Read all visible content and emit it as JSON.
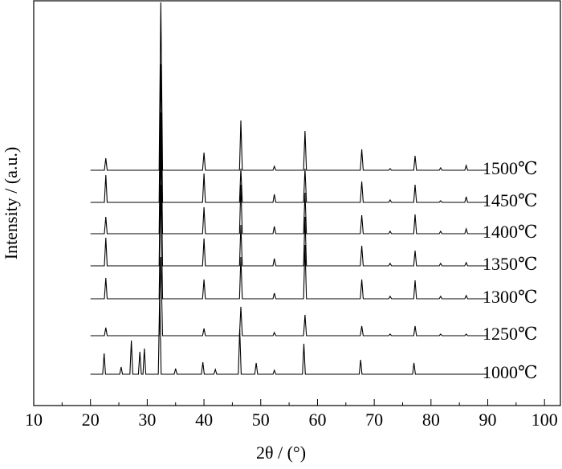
{
  "chart_data": {
    "type": "line",
    "xlabel": "2θ / (°)",
    "ylabel": "Intensity / (a.u.)",
    "xlim": [
      10,
      102.8
    ],
    "xticks": [
      10,
      20,
      30,
      40,
      50,
      60,
      70,
      80,
      90,
      100
    ],
    "xminorticks": [
      15,
      25,
      35,
      45,
      55,
      65,
      75,
      85,
      95
    ],
    "ylim": [
      0,
      505
    ],
    "color": "#000000",
    "series": [
      {
        "name": "1500℃",
        "x": [
          20,
          22.45,
          22.7,
          22.95,
          32.1,
          32.4,
          32.7,
          39.75,
          40,
          40.25,
          46.25,
          46.5,
          46.75,
          52.15,
          52.4,
          52.65,
          57.55,
          57.8,
          58.05,
          67.55,
          67.8,
          68.05,
          72.55,
          72.8,
          73.05,
          76.95,
          77.2,
          77.45,
          81.45,
          81.7,
          81.95,
          85.95,
          86.2,
          86.45,
          90
        ],
        "values": [
          293,
          293,
          308,
          293,
          293,
          502,
          293,
          293,
          315,
          293,
          293,
          355,
          293,
          293,
          298,
          293,
          293,
          342,
          293,
          293,
          319,
          293,
          293,
          295,
          293,
          293,
          311,
          293,
          293,
          296,
          293,
          293,
          299,
          293,
          293
        ]
      },
      {
        "name": "1450℃",
        "x": [
          20,
          22.45,
          22.7,
          22.95,
          32.1,
          32.4,
          32.7,
          39.75,
          40,
          40.25,
          46.25,
          46.5,
          46.75,
          52.15,
          52.4,
          52.65,
          57.55,
          57.8,
          58.05,
          67.55,
          67.8,
          68.05,
          72.55,
          72.8,
          73.05,
          76.95,
          77.2,
          77.45,
          81.45,
          81.7,
          81.95,
          85.95,
          86.2,
          86.45,
          90
        ],
        "values": [
          253,
          253,
          287,
          253,
          253,
          425,
          253,
          253,
          289,
          253,
          253,
          295,
          253,
          253,
          263,
          253,
          253,
          295,
          253,
          253,
          279,
          253,
          253,
          256,
          253,
          253,
          275,
          253,
          253,
          255,
          253,
          253,
          260,
          253,
          253
        ]
      },
      {
        "name": "1400℃",
        "x": [
          20,
          22.45,
          22.7,
          22.95,
          32.1,
          32.4,
          32.7,
          39.75,
          40,
          40.25,
          46.25,
          46.5,
          46.75,
          52.15,
          52.4,
          52.65,
          57.55,
          57.8,
          58.05,
          67.55,
          67.8,
          68.05,
          72.55,
          72.8,
          73.05,
          76.95,
          77.2,
          77.45,
          81.45,
          81.7,
          81.95,
          85.95,
          86.2,
          86.45,
          90
        ],
        "values": [
          214,
          214,
          235,
          214,
          214,
          365,
          214,
          214,
          247,
          214,
          214,
          275,
          214,
          214,
          223,
          214,
          214,
          265,
          214,
          214,
          237,
          214,
          214,
          217,
          214,
          214,
          238,
          214,
          214,
          217,
          214,
          214,
          220,
          214,
          214
        ]
      },
      {
        "name": "1350℃",
        "x": [
          20,
          22.45,
          22.7,
          22.95,
          32.1,
          32.4,
          32.7,
          39.75,
          40,
          40.25,
          46.25,
          46.5,
          46.75,
          52.15,
          52.4,
          52.65,
          57.55,
          57.8,
          58.05,
          67.55,
          67.8,
          68.05,
          72.55,
          72.8,
          73.05,
          76.95,
          77.2,
          77.45,
          81.45,
          81.7,
          81.95,
          85.95,
          86.2,
          86.45,
          90
        ],
        "values": [
          174,
          174,
          209,
          174,
          174,
          325,
          174,
          174,
          208,
          174,
          174,
          225,
          174,
          174,
          183,
          174,
          174,
          235,
          174,
          174,
          199,
          174,
          174,
          177,
          174,
          174,
          193,
          174,
          174,
          177,
          174,
          174,
          178,
          174,
          174
        ]
      },
      {
        "name": "1300℃",
        "x": [
          20,
          22.45,
          22.7,
          22.95,
          32.1,
          32.4,
          32.7,
          39.75,
          40,
          40.25,
          46.25,
          46.5,
          46.75,
          52.15,
          52.4,
          52.65,
          57.55,
          57.8,
          58.05,
          67.55,
          67.8,
          68.05,
          72.55,
          72.8,
          73.05,
          76.95,
          77.2,
          77.45,
          81.45,
          81.7,
          81.95,
          85.95,
          86.2,
          86.45,
          90
        ],
        "values": [
          133,
          133,
          159,
          133,
          133,
          275,
          133,
          133,
          157,
          133,
          133,
          185,
          133,
          133,
          140,
          133,
          133,
          200,
          133,
          133,
          157,
          133,
          133,
          136,
          133,
          133,
          156,
          133,
          133,
          136,
          133,
          133,
          137,
          133,
          133
        ]
      },
      {
        "name": "1250℃",
        "x": [
          20,
          22.45,
          22.7,
          22.95,
          32.1,
          32.4,
          32.7,
          39.75,
          40,
          40.25,
          46.25,
          46.5,
          46.75,
          52.15,
          52.4,
          52.65,
          57.55,
          57.8,
          58.05,
          67.55,
          67.8,
          68.05,
          72.55,
          72.8,
          73.05,
          76.95,
          77.2,
          77.45,
          81.45,
          81.7,
          81.95,
          85.95,
          86.2,
          86.45,
          90
        ],
        "values": [
          87,
          87,
          97,
          87,
          87,
          185,
          87,
          87,
          96,
          87,
          87,
          123,
          87,
          87,
          91,
          87,
          87,
          113,
          87,
          87,
          99,
          87,
          87,
          89,
          87,
          87,
          99,
          87,
          87,
          89,
          87,
          87,
          89,
          87,
          87
        ]
      },
      {
        "name": "1000℃",
        "x": [
          20,
          22.15,
          22.4,
          22.65,
          25.15,
          25.4,
          25.65,
          26.95,
          27.2,
          27.45,
          28.45,
          28.7,
          28.95,
          29.25,
          29.5,
          29.75,
          31.95,
          32.2,
          32.45,
          34.75,
          35,
          35.25,
          39.55,
          39.8,
          40.05,
          41.75,
          42,
          42.25,
          46.05,
          46.3,
          46.55,
          48.95,
          49.2,
          49.45,
          52.15,
          52.4,
          52.65,
          57.35,
          57.6,
          57.85,
          67.35,
          67.6,
          67.85,
          76.75,
          77,
          77.25,
          90
        ],
        "values": [
          39,
          39,
          65,
          39,
          39,
          48,
          39,
          39,
          81,
          39,
          39,
          67,
          39,
          39,
          71,
          39,
          39,
          140,
          39,
          39,
          46,
          39,
          39,
          54,
          39,
          39,
          45,
          39,
          39,
          95,
          39,
          39,
          53,
          39,
          39,
          44,
          39,
          39,
          77,
          39,
          39,
          57,
          39,
          39,
          53,
          39,
          39
        ]
      }
    ]
  }
}
